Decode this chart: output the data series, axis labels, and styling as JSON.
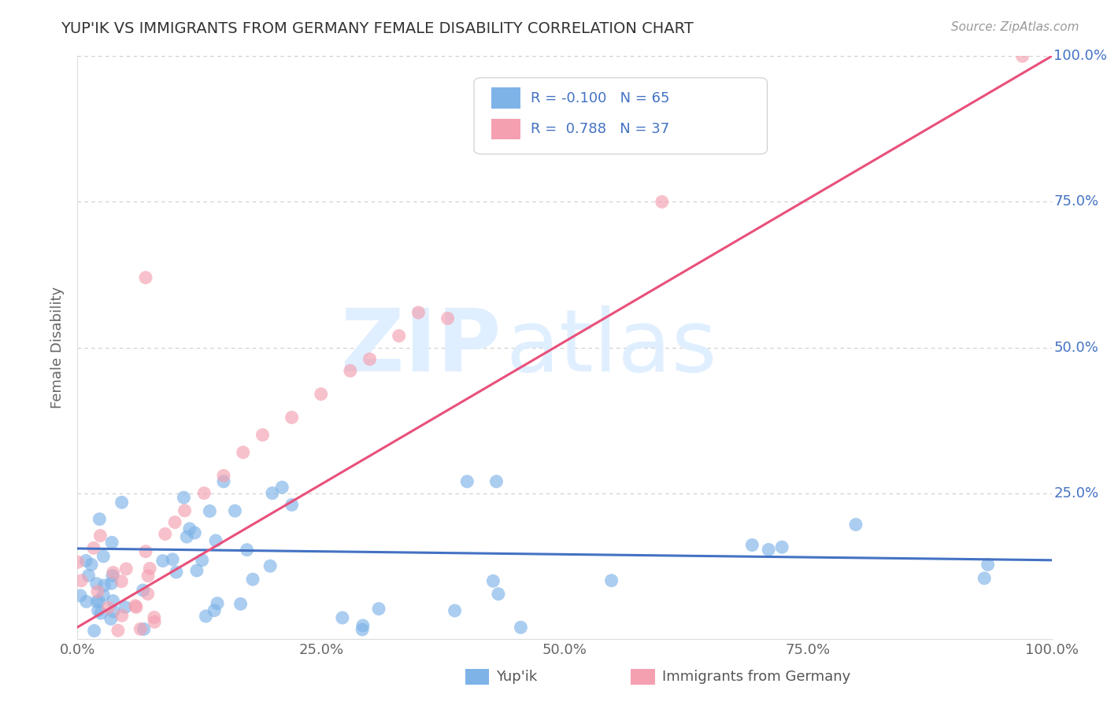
{
  "title": "YUP'IK VS IMMIGRANTS FROM GERMANY FEMALE DISABILITY CORRELATION CHART",
  "source": "Source: ZipAtlas.com",
  "ylabel": "Female Disability",
  "watermark_ZIP": "ZIP",
  "watermark_atlas": "atlas",
  "xlim": [
    0.0,
    1.0
  ],
  "ylim": [
    0.0,
    1.0
  ],
  "xtick_vals": [
    0.0,
    0.25,
    0.5,
    0.75,
    1.0
  ],
  "xtick_labels": [
    "0.0%",
    "25.0%",
    "50.0%",
    "75.0%",
    "100.0%"
  ],
  "ytick_vals": [
    0.0,
    0.25,
    0.5,
    0.75,
    1.0
  ],
  "ytick_labels": [
    "",
    "25.0%",
    "50.0%",
    "75.0%",
    "100.0%"
  ],
  "blue_color": "#7EB3E8",
  "pink_color": "#F4A0B0",
  "blue_line_color": "#4472C4",
  "pink_line_color": "#E8507A",
  "background_color": "#FFFFFF",
  "grid_color": "#CCCCCC",
  "title_color": "#333333",
  "source_color": "#999999",
  "axis_label_color": "#666666",
  "ytick_color": "#4472C4",
  "xtick_color": "#666666",
  "series1_name": "Yup'ik",
  "series1_R": -0.1,
  "series1_N": 65,
  "series2_name": "Immigrants from Germany",
  "series2_R": 0.788,
  "series2_N": 37,
  "legend_text_color": "#4472C4",
  "legend_border_color": "#CCCCCC"
}
